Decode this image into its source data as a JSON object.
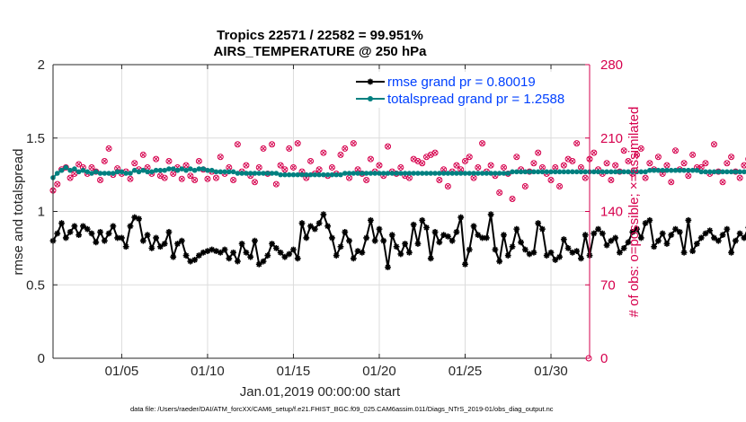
{
  "chart_data": {
    "type": "line",
    "title": "Tropics 22571 / 22582 = 99.951%",
    "subtitle": "AIRS_TEMPERATURE @ 250 hPa",
    "xlabel": "Jan.01,2019 00:00:00 start",
    "ylabel_left": "rmse and totalspread",
    "ylabel_right": "# of obs: o=possible; ×=assimilated",
    "ylim_left": [
      0,
      2
    ],
    "ylim_right": [
      0,
      280
    ],
    "xlim": [
      1.0,
      32.25
    ],
    "x_ticks": [
      5,
      10,
      15,
      20,
      25,
      30
    ],
    "x_tick_labels": [
      "01/05",
      "01/10",
      "01/15",
      "01/20",
      "01/25",
      "01/30"
    ],
    "y_ticks_left": [
      0,
      0.5,
      1,
      1.5,
      2
    ],
    "y_tick_labels_left": [
      "0",
      "0.5",
      "1",
      "1.5",
      "2"
    ],
    "y_ticks_right": [
      0,
      70,
      140,
      210,
      280
    ],
    "y_tick_labels_right": [
      "0",
      "70",
      "140",
      "210",
      "280"
    ],
    "grid": true,
    "legend_position": "top-right",
    "colors": {
      "rmse": "#000000",
      "spread": "#008080",
      "obs": "#d6004d",
      "axis": "#262626",
      "grid": "#dcdcdc",
      "legend_text": "#0040ff"
    },
    "series": [
      {
        "name": "rmse grand pr = 0.80019",
        "axis": "left",
        "marker": "asterisk",
        "x_start": 1.0,
        "x_step": 0.25,
        "values": [
          0.8,
          0.85,
          0.92,
          0.82,
          0.86,
          0.9,
          0.84,
          0.9,
          0.88,
          0.85,
          0.79,
          0.86,
          0.8,
          0.85,
          0.9,
          0.82,
          0.82,
          0.76,
          0.9,
          0.96,
          0.95,
          0.8,
          0.84,
          0.75,
          0.82,
          0.76,
          0.78,
          0.86,
          0.69,
          0.78,
          0.8,
          0.7,
          0.66,
          0.67,
          0.7,
          0.72,
          0.73,
          0.74,
          0.73,
          0.72,
          0.74,
          0.68,
          0.72,
          0.66,
          0.78,
          0.72,
          0.69,
          0.8,
          0.64,
          0.66,
          0.7,
          0.78,
          0.75,
          0.72,
          0.69,
          0.71,
          0.74,
          0.68,
          0.92,
          0.82,
          0.9,
          0.88,
          0.92,
          0.98,
          0.9,
          0.82,
          0.7,
          0.76,
          0.86,
          0.8,
          0.68,
          0.73,
          0.72,
          0.82,
          0.94,
          0.8,
          0.88,
          0.8,
          0.62,
          0.84,
          0.76,
          0.71,
          0.78,
          0.72,
          0.91,
          0.78,
          0.94,
          0.89,
          0.68,
          0.86,
          0.79,
          0.84,
          0.83,
          0.8,
          0.86,
          0.96,
          0.64,
          0.74,
          0.9,
          0.84,
          0.82,
          0.82,
          0.98,
          0.74,
          0.66,
          0.84,
          0.7,
          0.76,
          0.88,
          0.79,
          0.74,
          0.71,
          0.72,
          0.92,
          0.88,
          0.7,
          0.72,
          0.67,
          0.69,
          0.81,
          0.75,
          0.72,
          0.73,
          0.68,
          0.84,
          0.7,
          0.85,
          0.88,
          0.85,
          0.77,
          0.8,
          0.82,
          0.72,
          0.75,
          0.79,
          0.86,
          0.88,
          0.82,
          0.92,
          0.94,
          0.76,
          0.8,
          0.85,
          0.78,
          0.84,
          0.88,
          0.86,
          0.72,
          0.94,
          0.73,
          0.78,
          0.82,
          0.85,
          0.87,
          0.82,
          0.8,
          0.84,
          0.88,
          0.72,
          0.8,
          0.85,
          0.82,
          0.89,
          0.92,
          0.78,
          0.8,
          0.82,
          0.75,
          0.84,
          0.88,
          0.96,
          0.88,
          0.82,
          0.72
        ]
      },
      {
        "name": "totalspread grand pr = 1.2588",
        "axis": "left",
        "marker": "circle",
        "x_start": 1.0,
        "x_step": 0.25,
        "values": [
          1.23,
          1.26,
          1.28,
          1.3,
          1.28,
          1.29,
          1.27,
          1.28,
          1.27,
          1.26,
          1.27,
          1.26,
          1.26,
          1.26,
          1.26,
          1.27,
          1.27,
          1.26,
          1.26,
          1.28,
          1.27,
          1.28,
          1.27,
          1.27,
          1.28,
          1.28,
          1.28,
          1.29,
          1.29,
          1.28,
          1.29,
          1.28,
          1.29,
          1.28,
          1.29,
          1.29,
          1.28,
          1.28,
          1.27,
          1.27,
          1.27,
          1.27,
          1.27,
          1.26,
          1.26,
          1.26,
          1.26,
          1.26,
          1.26,
          1.26,
          1.26,
          1.26,
          1.26,
          1.25,
          1.25,
          1.25,
          1.25,
          1.25,
          1.25,
          1.25,
          1.25,
          1.25,
          1.25,
          1.25,
          1.25,
          1.25,
          1.25,
          1.25,
          1.26,
          1.26,
          1.26,
          1.26,
          1.26,
          1.26,
          1.26,
          1.26,
          1.26,
          1.26,
          1.26,
          1.26,
          1.26,
          1.26,
          1.26,
          1.26,
          1.26,
          1.26,
          1.26,
          1.26,
          1.26,
          1.26,
          1.26,
          1.26,
          1.26,
          1.26,
          1.26,
          1.26,
          1.26,
          1.26,
          1.26,
          1.26,
          1.26,
          1.26,
          1.26,
          1.26,
          1.26,
          1.26,
          1.26,
          1.27,
          1.27,
          1.27,
          1.27,
          1.27,
          1.27,
          1.27,
          1.27,
          1.27,
          1.27,
          1.27,
          1.27,
          1.27,
          1.27,
          1.27,
          1.27,
          1.27,
          1.27,
          1.27,
          1.27,
          1.27,
          1.27,
          1.27,
          1.27,
          1.27,
          1.27,
          1.27,
          1.27,
          1.27,
          1.27,
          1.27,
          1.27,
          1.28,
          1.28,
          1.28,
          1.28,
          1.28,
          1.28,
          1.28,
          1.28,
          1.28,
          1.28,
          1.28,
          1.28,
          1.27,
          1.27,
          1.27,
          1.27,
          1.27,
          1.27,
          1.27,
          1.27,
          1.27,
          1.27,
          1.27,
          1.27,
          1.27,
          1.27,
          1.27,
          1.27,
          1.27,
          1.28,
          1.28,
          1.28,
          1.28,
          1.28,
          1.28,
          1.28,
          1.28,
          1.28,
          1.28,
          1.27,
          1.27,
          1.26
        ]
      },
      {
        "name": "# of obs (possible / assimilated)",
        "axis": "right",
        "marker": "circle-x",
        "x_start": 1.0,
        "x_step": 0.25,
        "values": [
          160,
          166,
          180,
          182,
          172,
          176,
          185,
          182,
          176,
          182,
          178,
          170,
          188,
          200,
          175,
          181,
          176,
          178,
          171,
          186,
          180,
          194,
          182,
          176,
          190,
          174,
          172,
          188,
          176,
          182,
          171,
          184,
          174,
          170,
          188,
          180,
          171,
          178,
          172,
          192,
          176,
          182,
          170,
          204,
          178,
          184,
          174,
          168,
          182,
          200,
          176,
          204,
          166,
          184,
          180,
          200,
          182,
          205,
          178,
          172,
          188,
          176,
          180,
          196,
          174,
          182,
          176,
          194,
          200,
          172,
          205,
          180,
          176,
          170,
          190,
          178,
          184,
          174,
          202,
          178,
          176,
          182,
          174,
          172,
          190,
          188,
          186,
          192,
          194,
          196,
          170,
          180,
          164,
          178,
          184,
          180,
          188,
          192,
          172,
          182,
          205,
          178,
          184,
          174,
          158,
          182,
          176,
          152,
          192,
          180,
          164,
          178,
          186,
          196,
          182,
          176,
          170,
          182,
          164,
          184,
          190,
          188,
          205,
          182,
          172,
          190,
          196,
          180,
          176,
          186,
          170,
          184,
          178,
          198,
          188,
          176,
          194,
          200,
          172,
          186,
          180,
          192,
          176,
          184,
          168,
          198,
          180,
          186,
          174,
          194,
          182,
          182,
          186,
          176,
          204,
          178,
          168,
          186,
          192,
          178,
          172,
          184,
          190,
          176,
          180,
          196,
          186,
          174,
          170,
          188,
          178,
          184,
          176,
          186,
          174,
          206,
          182,
          186,
          178,
          182,
          180,
          176,
          168,
          198,
          180
        ]
      }
    ],
    "end_point_right": 0
  },
  "footnote": "data file: /Users/raeder/DAI/ATM_forcXX/CAM6_setup/f.e21.FHIST_BGC.f09_025.CAM6assim.011/Diags_NTrS_2019-01/obs_diag_output.nc"
}
